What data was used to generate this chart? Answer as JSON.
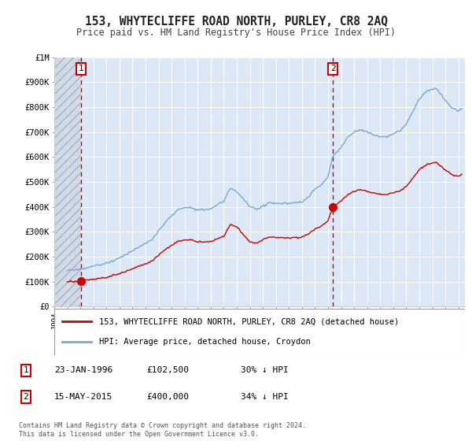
{
  "title": "153, WHYTECLIFFE ROAD NORTH, PURLEY, CR8 2AQ",
  "subtitle": "Price paid vs. HM Land Registry's House Price Index (HPI)",
  "sale1_year": 1996.07,
  "sale1_price": 102500,
  "sale2_year": 2015.37,
  "sale2_price": 400000,
  "legend1": "153, WHYTECLIFFE ROAD NORTH, PURLEY, CR8 2AQ (detached house)",
  "legend2": "HPI: Average price, detached house, Croydon",
  "footnote": "Contains HM Land Registry data © Crown copyright and database right 2024.\nThis data is licensed under the Open Government Licence v3.0.",
  "price_color": "#cc0000",
  "hpi_color": "#74a9d8",
  "background_plot": "#dce8f5",
  "background_fig": "#ffffff",
  "hatch_color": "#b0b8c8",
  "ylim": [
    0,
    1000000
  ],
  "xlim_start": 1994.0,
  "xlim_end": 2025.5,
  "yticks": [
    0,
    100000,
    200000,
    300000,
    400000,
    500000,
    600000,
    700000,
    800000,
    900000,
    1000000
  ],
  "ylabels": [
    "£0",
    "£100K",
    "£200K",
    "£300K",
    "£400K",
    "£500K",
    "£600K",
    "£700K",
    "£800K",
    "£900K",
    "£1M"
  ],
  "ann1_date": "23-JAN-1996",
  "ann1_price": "£102,500",
  "ann1_hpi": "30% ↓ HPI",
  "ann2_date": "15-MAY-2015",
  "ann2_price": "£400,000",
  "ann2_hpi": "34% ↓ HPI"
}
